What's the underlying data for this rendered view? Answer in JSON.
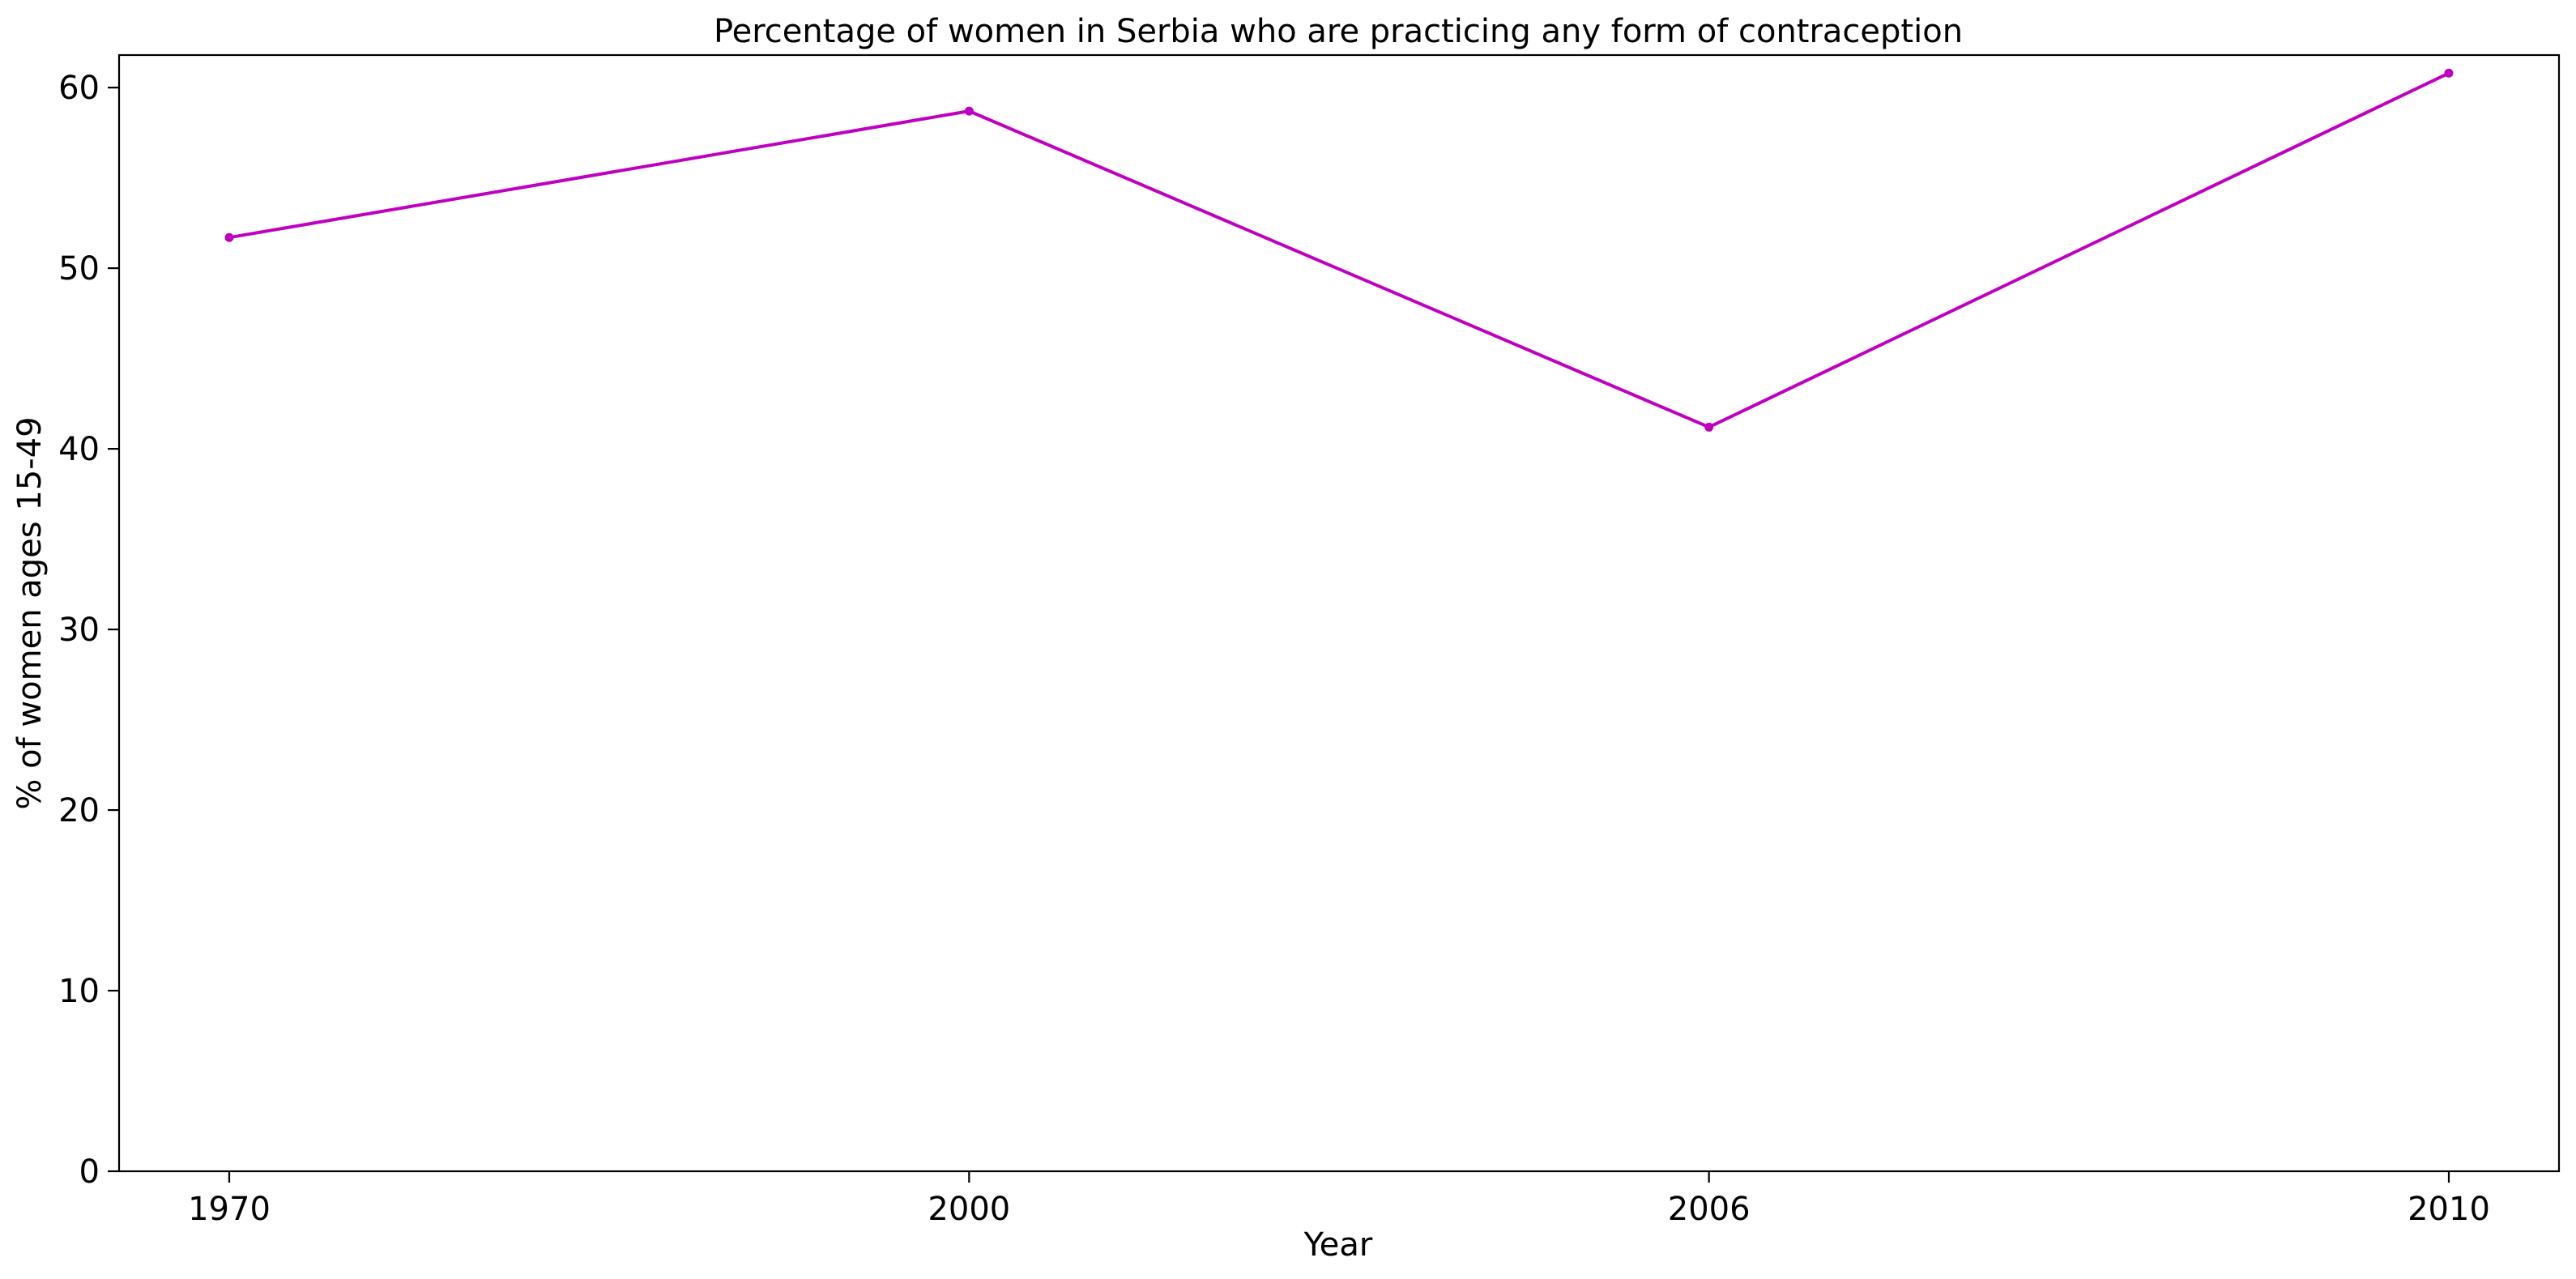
{
  "chart_data": {
    "type": "line",
    "title": "Percentage of women in Serbia who are practicing any form of contraception",
    "xlabel": "Year",
    "ylabel": "% of women ages 15-49",
    "categories": [
      "1970",
      "2000",
      "2006",
      "2010"
    ],
    "series": [
      {
        "values": [
          51.7,
          58.7,
          41.2,
          60.8
        ],
        "color": "#c000c0"
      }
    ],
    "ylim": [
      0,
      61.8
    ],
    "yticks": [
      0,
      10,
      20,
      30,
      40,
      50,
      60
    ],
    "ytick_labels": [
      "0",
      "10",
      "20",
      "30",
      "40",
      "50",
      "60"
    ],
    "grid": false,
    "legend": "none"
  }
}
